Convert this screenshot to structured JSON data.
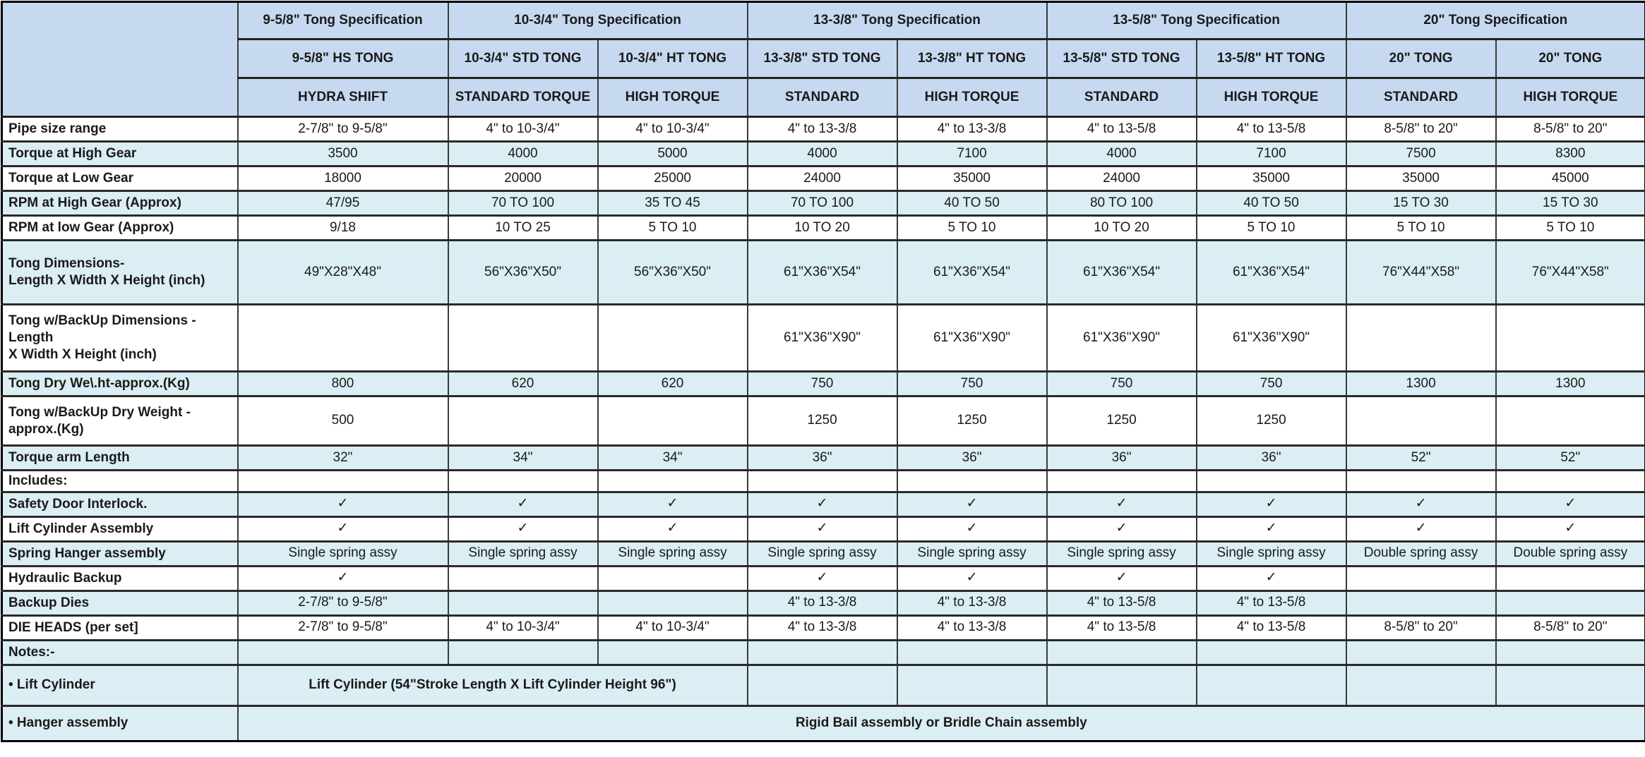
{
  "colors": {
    "header_bg": "#c6d9f0",
    "row_alt_bg": "#daeef3",
    "row_bg": "#ffffff",
    "border": "#2a2a2a",
    "check_color": "#1a1a1a"
  },
  "icons": {
    "check": "✓"
  },
  "table": {
    "corner": "",
    "groups": [
      {
        "label": "9-5/8\" Tong Specification",
        "span": 1
      },
      {
        "label": "10-3/4\" Tong Specification",
        "span": 2
      },
      {
        "label": "13-3/8\" Tong Specification",
        "span": 2
      },
      {
        "label": "13-5/8\" Tong Specification",
        "span": 2
      },
      {
        "label": "20\" Tong Specification",
        "span": 2
      }
    ],
    "tong_names": [
      "9-5/8\" HS TONG",
      "10-3/4\" STD TONG",
      "10-3/4\" HT TONG",
      "13-3/8\" STD TONG",
      "13-3/8\" HT TONG",
      "13-5/8\" STD TONG",
      "13-5/8\" HT TONG",
      "20\" TONG",
      "20\" TONG"
    ],
    "tong_types": [
      "HYDRA SHIFT",
      "STANDARD TORQUE",
      "HIGH TORQUE",
      "STANDARD",
      "HIGH TORQUE",
      "STANDARD",
      "HIGH TORQUE",
      "STANDARD",
      "HIGH TORQUE"
    ],
    "rows": [
      {
        "label": "Pipe size range",
        "shaded": false,
        "values": [
          "2-7/8\" to 9-5/8\"",
          "4\" to 10-3/4\"",
          "4\" to 10-3/4\"",
          "4\" to 13-3/8",
          "4\" to 13-3/8",
          "4\" to 13-5/8",
          "4\" to 13-5/8",
          "8-5/8\" to 20\"",
          "8-5/8\" to 20\""
        ]
      },
      {
        "label": "Torque at High Gear",
        "shaded": true,
        "values": [
          "3500",
          "4000",
          "5000",
          "4000",
          "7100",
          "4000",
          "7100",
          "7500",
          "8300"
        ]
      },
      {
        "label": "Torque at Low Gear",
        "shaded": false,
        "values": [
          "18000",
          "20000",
          "25000",
          "24000",
          "35000",
          "24000",
          "35000",
          "35000",
          "45000"
        ]
      },
      {
        "label": "RPM at High Gear (Approx)",
        "shaded": true,
        "values": [
          "47/95",
          "70 TO 100",
          "35 TO 45",
          "70 TO 100",
          "40 TO 50",
          "80 TO 100",
          "40 TO 50",
          "15 TO 30",
          "15 TO 30"
        ]
      },
      {
        "label": "RPM at low Gear (Approx)",
        "shaded": false,
        "values": [
          "9/18",
          "10 TO 25",
          "5 TO 10",
          "10 TO 20",
          "5 TO 10",
          "10 TO 20",
          "5 TO 10",
          "5 TO 10",
          "5 TO 10"
        ]
      },
      {
        "label": "Tong Dimensions-\nLength X Width X Height (inch)",
        "shaded": true,
        "values": [
          "49\"X28\"X48\"",
          "56\"X36\"X50\"",
          "56\"X36\"X50\"",
          "61\"X36\"X54\"",
          "61\"X36\"X54\"",
          "61\"X36\"X54\"",
          "61\"X36\"X54\"",
          "76\"X44\"X58\"",
          "76\"X44\"X58\""
        ]
      },
      {
        "label": "Tong w/BackUp Dimensions -\nLength\nX Width X Height (inch)",
        "shaded": false,
        "values": [
          "",
          "",
          "",
          "61\"X36\"X90\"",
          "61\"X36\"X90\"",
          "61\"X36\"X90\"",
          "61\"X36\"X90\"",
          "",
          ""
        ]
      },
      {
        "label": "Tong Dry We\\.ht-approx.(Kg)",
        "shaded": true,
        "values": [
          "800",
          "620",
          "620",
          "750",
          "750",
          "750",
          "750",
          "1300",
          "1300"
        ]
      },
      {
        "label": "Tong w/BackUp Dry Weight -\napprox.(Kg)",
        "shaded": false,
        "values": [
          "500",
          "",
          "",
          "1250",
          "1250",
          "1250",
          "1250",
          "",
          ""
        ]
      },
      {
        "label": "Torque arm Length",
        "shaded": true,
        "values": [
          "32\"",
          "34\"",
          "34\"",
          "36\"",
          "36\"",
          "36\"",
          "36\"",
          "52\"",
          "52\""
        ]
      },
      {
        "label": "Includes:",
        "shaded": false,
        "values": [
          "",
          "",
          "",
          "",
          "",
          "",
          "",
          "",
          ""
        ]
      },
      {
        "label": "Safety Door Interlock.",
        "shaded": true,
        "values": [
          "✓",
          "✓",
          "✓",
          "✓",
          "✓",
          "✓",
          "✓",
          "✓",
          "✓"
        ]
      },
      {
        "label": "Lift Cylinder Assembly",
        "shaded": false,
        "values": [
          "✓",
          "✓",
          "✓",
          "✓",
          "✓",
          "✓",
          "✓",
          "✓",
          "✓"
        ]
      },
      {
        "label": "Spring Hanger assembly",
        "shaded": true,
        "values": [
          "Single spring assy",
          "Single spring assy",
          "Single spring assy",
          "Single spring assy",
          "Single spring assy",
          "Single spring assy",
          "Single spring assy",
          "Double spring assy",
          "Double spring assy"
        ]
      },
      {
        "label": "Hydraulic Backup",
        "shaded": false,
        "values": [
          "✓",
          "",
          "",
          "✓",
          "✓",
          "✓",
          "✓",
          "",
          ""
        ]
      },
      {
        "label": "Backup Dies",
        "shaded": true,
        "values": [
          "2-7/8\" to 9-5/8\"",
          "",
          "",
          "4\" to 13-3/8",
          "4\" to 13-3/8",
          "4\" to 13-5/8",
          "4\" to 13-5/8",
          "",
          ""
        ]
      },
      {
        "label": "DIE HEADS (per set]",
        "shaded": false,
        "values": [
          "2-7/8\" to 9-5/8\"",
          "4\" to 10-3/4\"",
          "4\" to 10-3/4\"",
          "4\" to 13-3/8",
          "4\" to 13-3/8",
          "4\" to 13-5/8",
          "4\" to 13-5/8",
          "8-5/8\" to 20\"",
          "8-5/8\" to 20\""
        ]
      },
      {
        "label": "Notes:-",
        "shaded": true,
        "values": [
          "",
          "",
          "",
          "",
          "",
          "",
          "",
          "",
          ""
        ]
      },
      {
        "label": "• Lift Cylinder",
        "shaded": true,
        "merge": {
          "text": "Lift Cylinder (54\"Stroke Length X Lift Cylinder Height 96\")",
          "span": 3
        },
        "values": [
          "",
          "",
          "",
          "",
          "",
          ""
        ]
      },
      {
        "label": "• Hanger assembly",
        "shaded": true,
        "merge": {
          "text": "Rigid Bail assembly or Bridle Chain assembly",
          "span": 9
        },
        "values": []
      }
    ]
  }
}
